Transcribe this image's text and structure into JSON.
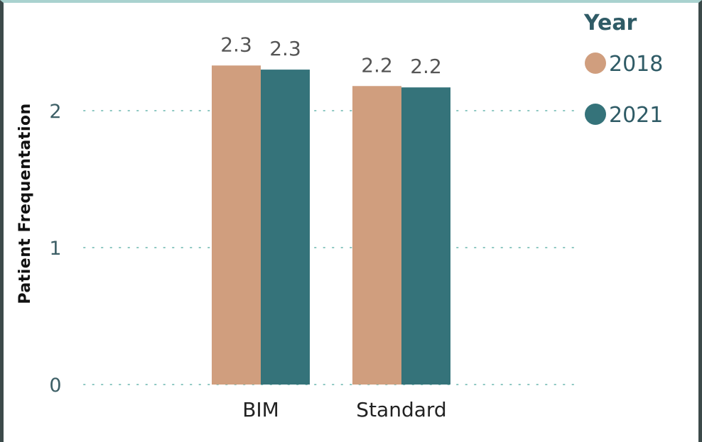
{
  "chart_data": {
    "type": "bar",
    "categories": [
      "BIM",
      "Standard"
    ],
    "series": [
      {
        "name": "2018",
        "values": [
          2.33,
          2.18
        ],
        "labels": [
          "2.3",
          "2.2"
        ],
        "color": "#d09e7e"
      },
      {
        "name": "2021",
        "values": [
          2.3,
          2.17
        ],
        "labels": [
          "2.3",
          "2.2"
        ],
        "color": "#35737a"
      }
    ],
    "ylabel": "Patient Frequentation",
    "xlabel": "",
    "ylim": [
      0,
      2.6
    ],
    "yticks": [
      0,
      1,
      2
    ],
    "ytick_labels": [
      "0",
      "1",
      "2"
    ],
    "grid": true,
    "legend": {
      "title": "Year",
      "placement": "top-right"
    }
  }
}
